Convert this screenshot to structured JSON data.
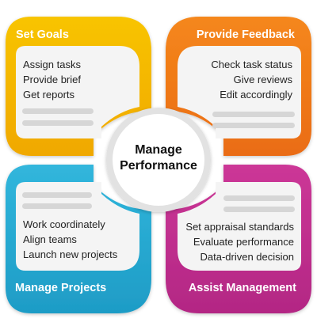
{
  "center": {
    "line1": "Manage",
    "line2": "Performance"
  },
  "quadrants": {
    "top_left": {
      "title": "Set Goals",
      "color": "#f5b800",
      "items": [
        "Assign tasks",
        "Provide brief",
        "Get reports"
      ]
    },
    "top_right": {
      "title": "Provide Feedback",
      "color": "#f07d17",
      "items": [
        "Check task status",
        "Give reviews",
        "Edit accordingly"
      ]
    },
    "bottom_left": {
      "title": "Manage Projects",
      "color": "#27a9cf",
      "items": [
        "Work coordinately",
        "Align teams",
        "Launch new projects"
      ]
    },
    "bottom_right": {
      "title": "Assist Management",
      "color": "#c12f8e",
      "items": [
        "Set appraisal standards",
        "Evaluate performance",
        "Data-driven decision"
      ]
    }
  }
}
